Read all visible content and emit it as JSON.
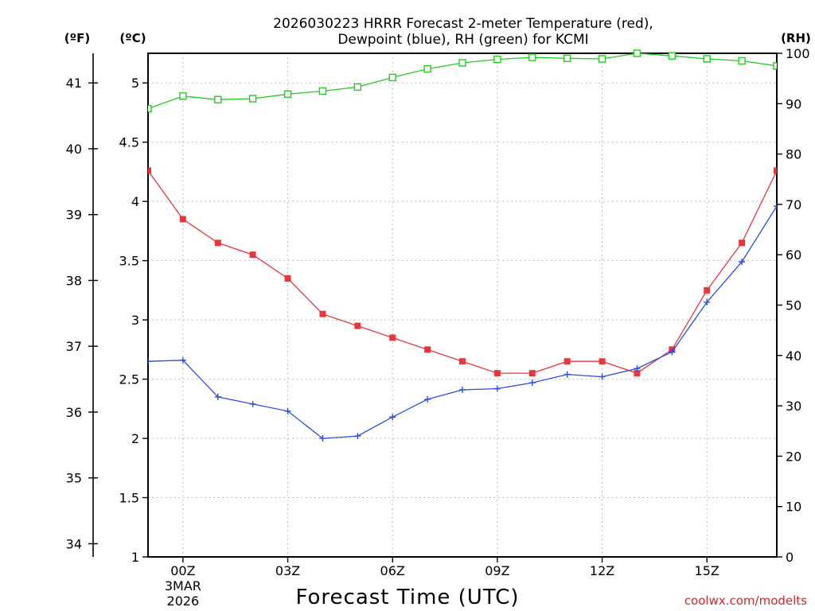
{
  "chart_data": {
    "type": "line",
    "title_line1": "2026030223 HRRR Forecast 2-meter Temperature (red),",
    "title_line2": "Dewpoint (blue), RH (green) for KCMI",
    "xlabel": "Forecast Time (UTC)",
    "credit": "coolwx.com/modelts",
    "units": {
      "fahrenheit": "(ºF)",
      "celsius": "(ºC)",
      "rh": "(RH)"
    },
    "x": [
      -1,
      0,
      1,
      2,
      3,
      4,
      5,
      6,
      7,
      8,
      9,
      10,
      11,
      12,
      13,
      14,
      15,
      16,
      17
    ],
    "xlim": [
      -1,
      17
    ],
    "x_ticks": [
      {
        "x": 0,
        "label": "00Z",
        "sub1": "3MAR",
        "sub2": "2026"
      },
      {
        "x": 3,
        "label": "03Z"
      },
      {
        "x": 6,
        "label": "06Z"
      },
      {
        "x": 9,
        "label": "09Z"
      },
      {
        "x": 12,
        "label": "12Z"
      },
      {
        "x": 15,
        "label": "15Z"
      }
    ],
    "celsius_axis": {
      "ylim": [
        1,
        5.25
      ],
      "ticks": [
        "1",
        "1.5",
        "2",
        "2.5",
        "3",
        "3.5",
        "4",
        "4.5",
        "5"
      ]
    },
    "fahrenheit_axis": {
      "ticks": [
        "34",
        "35",
        "36",
        "37",
        "38",
        "39",
        "40",
        "41"
      ]
    },
    "rh_axis": {
      "ylim": [
        0,
        100
      ],
      "ticks": [
        "0",
        "10",
        "20",
        "30",
        "40",
        "50",
        "60",
        "70",
        "80",
        "90",
        "100"
      ]
    },
    "grid": true,
    "series": [
      {
        "name": "Temperature",
        "color": "#e8363c",
        "marker": "filled-square",
        "axis": "celsius",
        "values": [
          4.26,
          3.85,
          3.65,
          3.55,
          3.35,
          3.05,
          2.95,
          2.85,
          2.75,
          2.65,
          2.55,
          2.55,
          2.65,
          2.65,
          2.55,
          2.75,
          3.25,
          3.65,
          4.26
        ]
      },
      {
        "name": "Dewpoint",
        "color": "#2a4fe0",
        "marker": "plus",
        "axis": "celsius",
        "values": [
          2.65,
          2.66,
          2.35,
          2.29,
          2.23,
          2.0,
          2.02,
          2.18,
          2.33,
          2.41,
          2.42,
          2.47,
          2.54,
          2.52,
          2.59,
          2.73,
          3.15,
          3.49,
          3.96
        ]
      },
      {
        "name": "RH",
        "color": "#22cc22",
        "marker": "open-square",
        "axis": "rh",
        "values": [
          89,
          91.5,
          90.8,
          91,
          91.9,
          92.5,
          93.3,
          95.2,
          96.9,
          98.1,
          98.8,
          99.2,
          99,
          98.9,
          100,
          99.5,
          98.9,
          98.5,
          97.5
        ]
      }
    ]
  }
}
